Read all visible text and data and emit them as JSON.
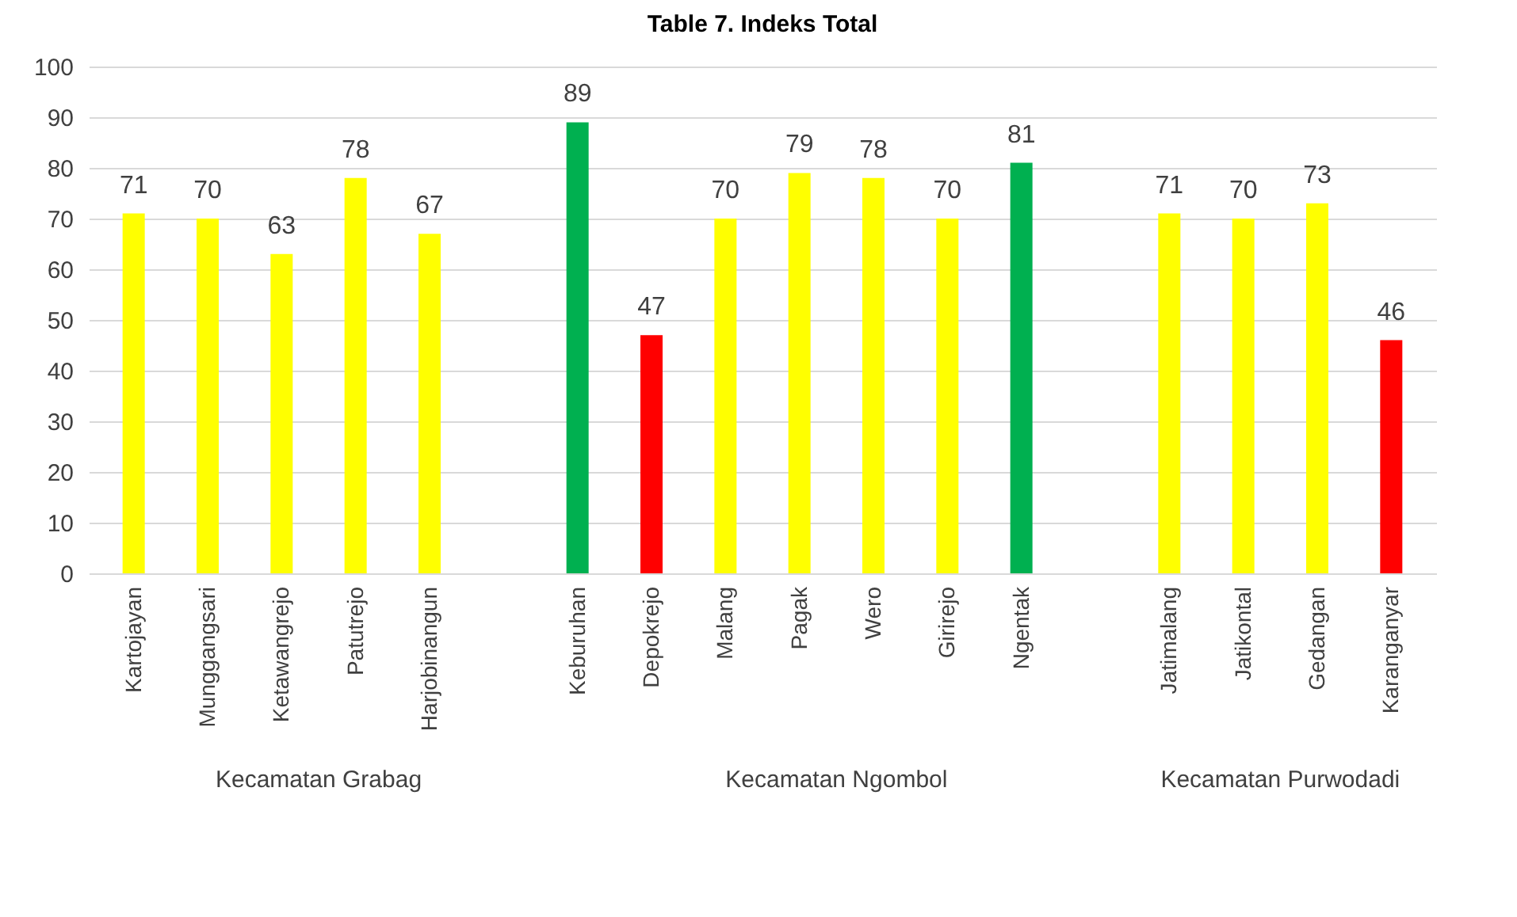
{
  "chart_data": {
    "type": "bar",
    "title": "Table 7. Indeks Total",
    "categories": [
      "Kartojayan",
      "Munggangsari",
      "Ketawangrejo",
      "Patutrejo",
      "Harjobinangun",
      null,
      "Keburuhan",
      "Depokrejo",
      "Malang",
      "Pagak",
      "Wero",
      "Girirejo",
      "Ngentak",
      null,
      "Jatimalang",
      "Jatikontal",
      "Gedangan",
      "Karanganyar"
    ],
    "values": [
      71,
      70,
      63,
      78,
      67,
      null,
      89,
      47,
      70,
      79,
      78,
      70,
      81,
      null,
      71,
      70,
      73,
      46
    ],
    "colors": [
      "#ffff00",
      "#ffff00",
      "#ffff00",
      "#ffff00",
      "#ffff00",
      null,
      "#00b050",
      "#ff0000",
      "#ffff00",
      "#ffff00",
      "#ffff00",
      "#ffff00",
      "#00b050",
      null,
      "#ffff00",
      "#ffff00",
      "#ffff00",
      "#ff0000"
    ],
    "data_labels": true,
    "ylim": [
      0,
      100
    ],
    "yticks": [
      0,
      10,
      20,
      30,
      40,
      50,
      60,
      70,
      80,
      90,
      100
    ],
    "grid": "y",
    "annotations": [
      "Kecamatan Grabag",
      "Kecamatan Ngombol",
      "Kecamatan Purwodadi"
    ]
  }
}
